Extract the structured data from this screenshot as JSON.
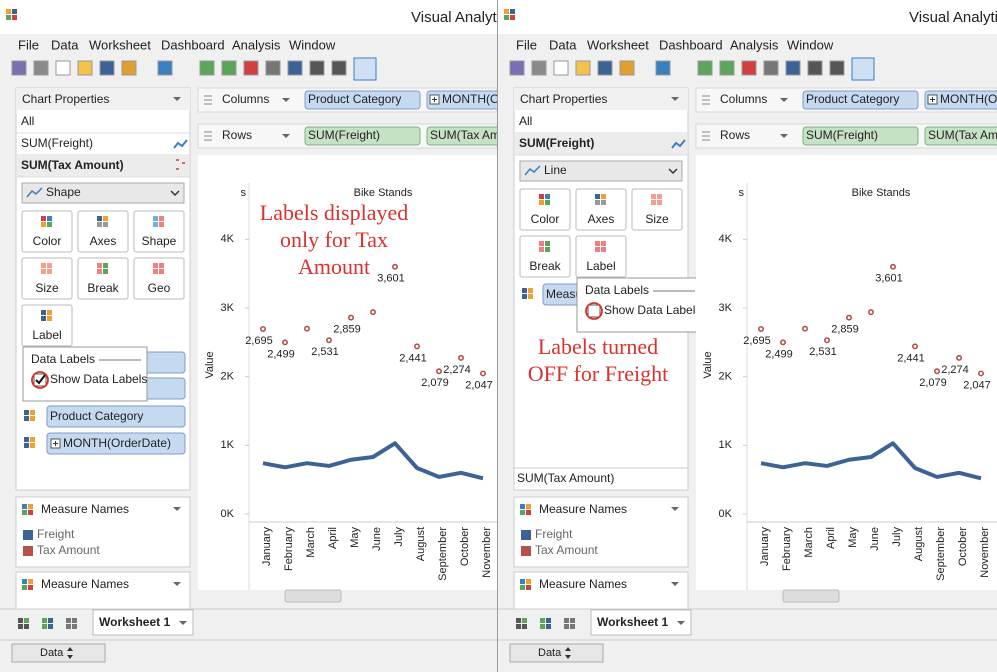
{
  "windows": [
    {
      "title": "Visual Analyt",
      "menu": [
        "File",
        "Data",
        "Worksheet",
        "Dashboard",
        "Analysis",
        "Window"
      ],
      "properties": {
        "header": "Chart Properties",
        "items": [
          "All",
          "SUM(Freight)",
          "SUM(Tax Amount)"
        ],
        "selected": 2,
        "mark_type": "Shape",
        "buttons": [
          "Color",
          "Axes",
          "Shape",
          "Size",
          "Break",
          "Geo",
          "Label"
        ],
        "popup_title": "Data Labels",
        "popup_option": "Show Data Labels",
        "checked": true,
        "pills": [
          "Product Category",
          "MONTH(OrderDate)"
        ]
      },
      "shelves": {
        "columns_label": "Columns",
        "columns": [
          "Product Category",
          "MONTH(Ord"
        ],
        "rows_label": "Rows",
        "rows": [
          "SUM(Freight)",
          "SUM(Tax Amo"
        ]
      },
      "legend_title": "Measure Names",
      "filter_title": "Measure Names",
      "sheet_tab": "Worksheet 1",
      "data_button": "Data",
      "annotation": [
        "Labels displayed",
        "only for Tax",
        "Amount"
      ]
    },
    {
      "title": "Visual Analyti",
      "menu": [
        "File",
        "Data",
        "Worksheet",
        "Dashboard",
        "Analysis",
        "Window"
      ],
      "properties": {
        "header": "Chart Properties",
        "items": [
          "All",
          "SUM(Freight)"
        ],
        "selected": 1,
        "mark_type": "Line",
        "buttons": [
          "Color",
          "Axes",
          "Size",
          "Break",
          "Label"
        ],
        "popup_title": "Data Labels",
        "popup_option": "Show Data Labels",
        "checked": false,
        "pills": [
          "Measu"
        ],
        "footer": "SUM(Tax Amount)"
      },
      "shelves": {
        "columns_label": "Columns",
        "columns": [
          "Product Category",
          "MONTH(Ord"
        ],
        "rows_label": "Rows",
        "rows": [
          "SUM(Freight)",
          "SUM(Tax Amo"
        ]
      },
      "legend_title": "Measure Names",
      "filter_title": "Measure Names",
      "sheet_tab": "Worksheet 1",
      "data_button": "Data",
      "annotation": [
        "Labels turned",
        "OFF for Freight"
      ]
    }
  ],
  "chart_data": {
    "type": "line",
    "panel_headers": [
      "s",
      "Bike Stands"
    ],
    "y_title": "Value",
    "categories": [
      "January",
      "February",
      "March",
      "April",
      "May",
      "June",
      "July",
      "August",
      "September",
      "October",
      "November"
    ],
    "series": [
      {
        "name": "Freight",
        "color": "#3d6296",
        "values": [
          740,
          680,
          740,
          700,
          790,
          830,
          1030,
          670,
          540,
          600,
          520
        ]
      },
      {
        "name": "Tax Amount",
        "color": "#b5504a",
        "values": [
          2695,
          2499,
          2700,
          2531,
          2859,
          2940,
          3601,
          2441,
          2079,
          2274,
          2047
        ],
        "value_labels": [
          "2,695",
          "2,499",
          null,
          "2,531",
          "2,859",
          null,
          "3,601",
          "2,441",
          "2,079",
          "2,274",
          "2,047"
        ]
      }
    ],
    "ylim": [
      0,
      4500
    ],
    "yticks": [
      {
        "value": 0,
        "label": "0K"
      },
      {
        "value": 1000,
        "label": "1K"
      },
      {
        "value": 2000,
        "label": "2K"
      },
      {
        "value": 3000,
        "label": "3K"
      },
      {
        "value": 4000,
        "label": "4K"
      }
    ]
  }
}
